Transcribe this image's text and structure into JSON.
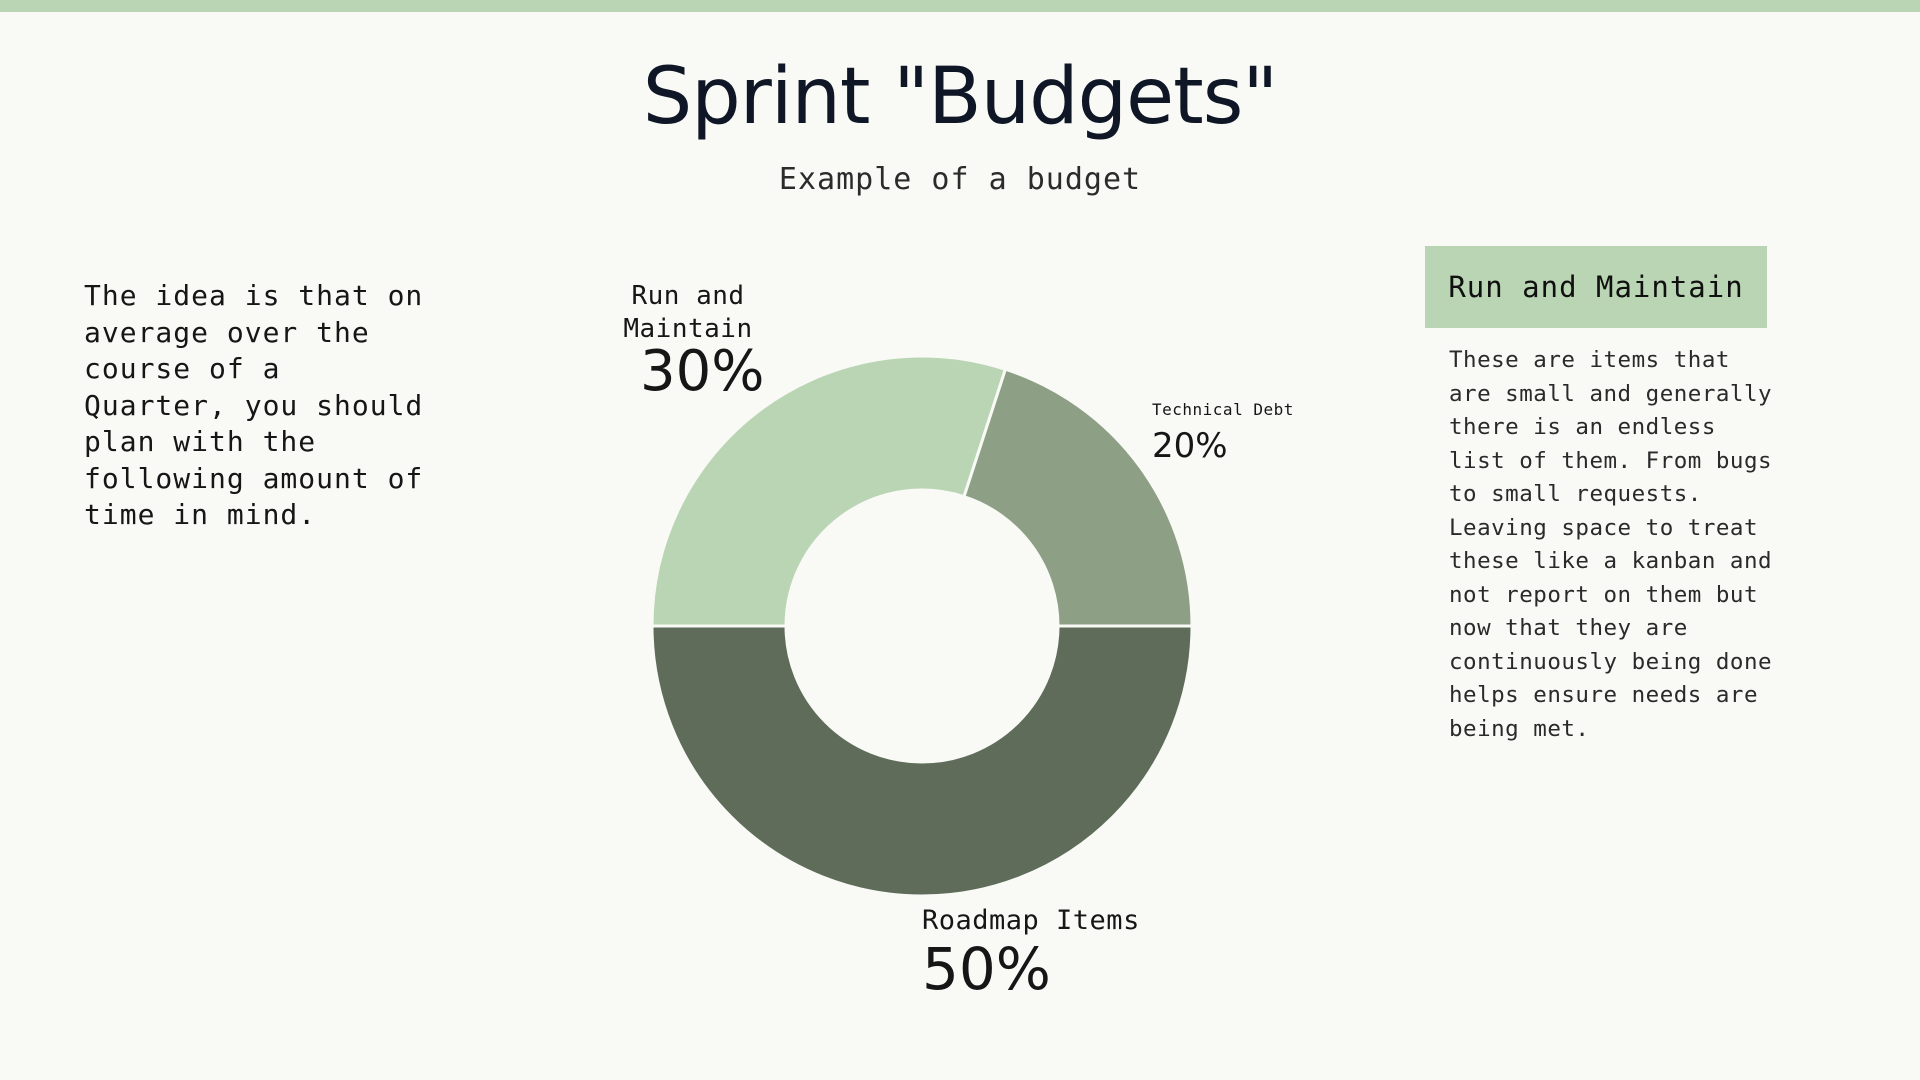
{
  "title": "Sprint \"Budgets\"",
  "subtitle": "Example of a budget",
  "intro": "The idea is that on average over the course of a Quarter, you should plan with the following amount of time in mind.",
  "sidebar": {
    "heading": "Run and Maintain",
    "body": "These are items that are small and generally there is an endless list of them. From bugs to small requests. Leaving space to treat these like a kanban and not report on them but now that they are continuously being done helps ensure needs are being met."
  },
  "colors": {
    "accent": "#bad5b3",
    "background": "#f9faf6"
  },
  "chart_data": {
    "type": "pie",
    "variant": "donut",
    "series": [
      {
        "name": "Run and Maintain",
        "value": 30,
        "label": "30%",
        "color": "#bad5b3"
      },
      {
        "name": "Technical Debt",
        "value": 20,
        "label": "20%",
        "color": "#8d9f85"
      },
      {
        "name": "Roadmap Items",
        "value": 50,
        "label": "50%",
        "color": "#5e6c59"
      }
    ]
  }
}
